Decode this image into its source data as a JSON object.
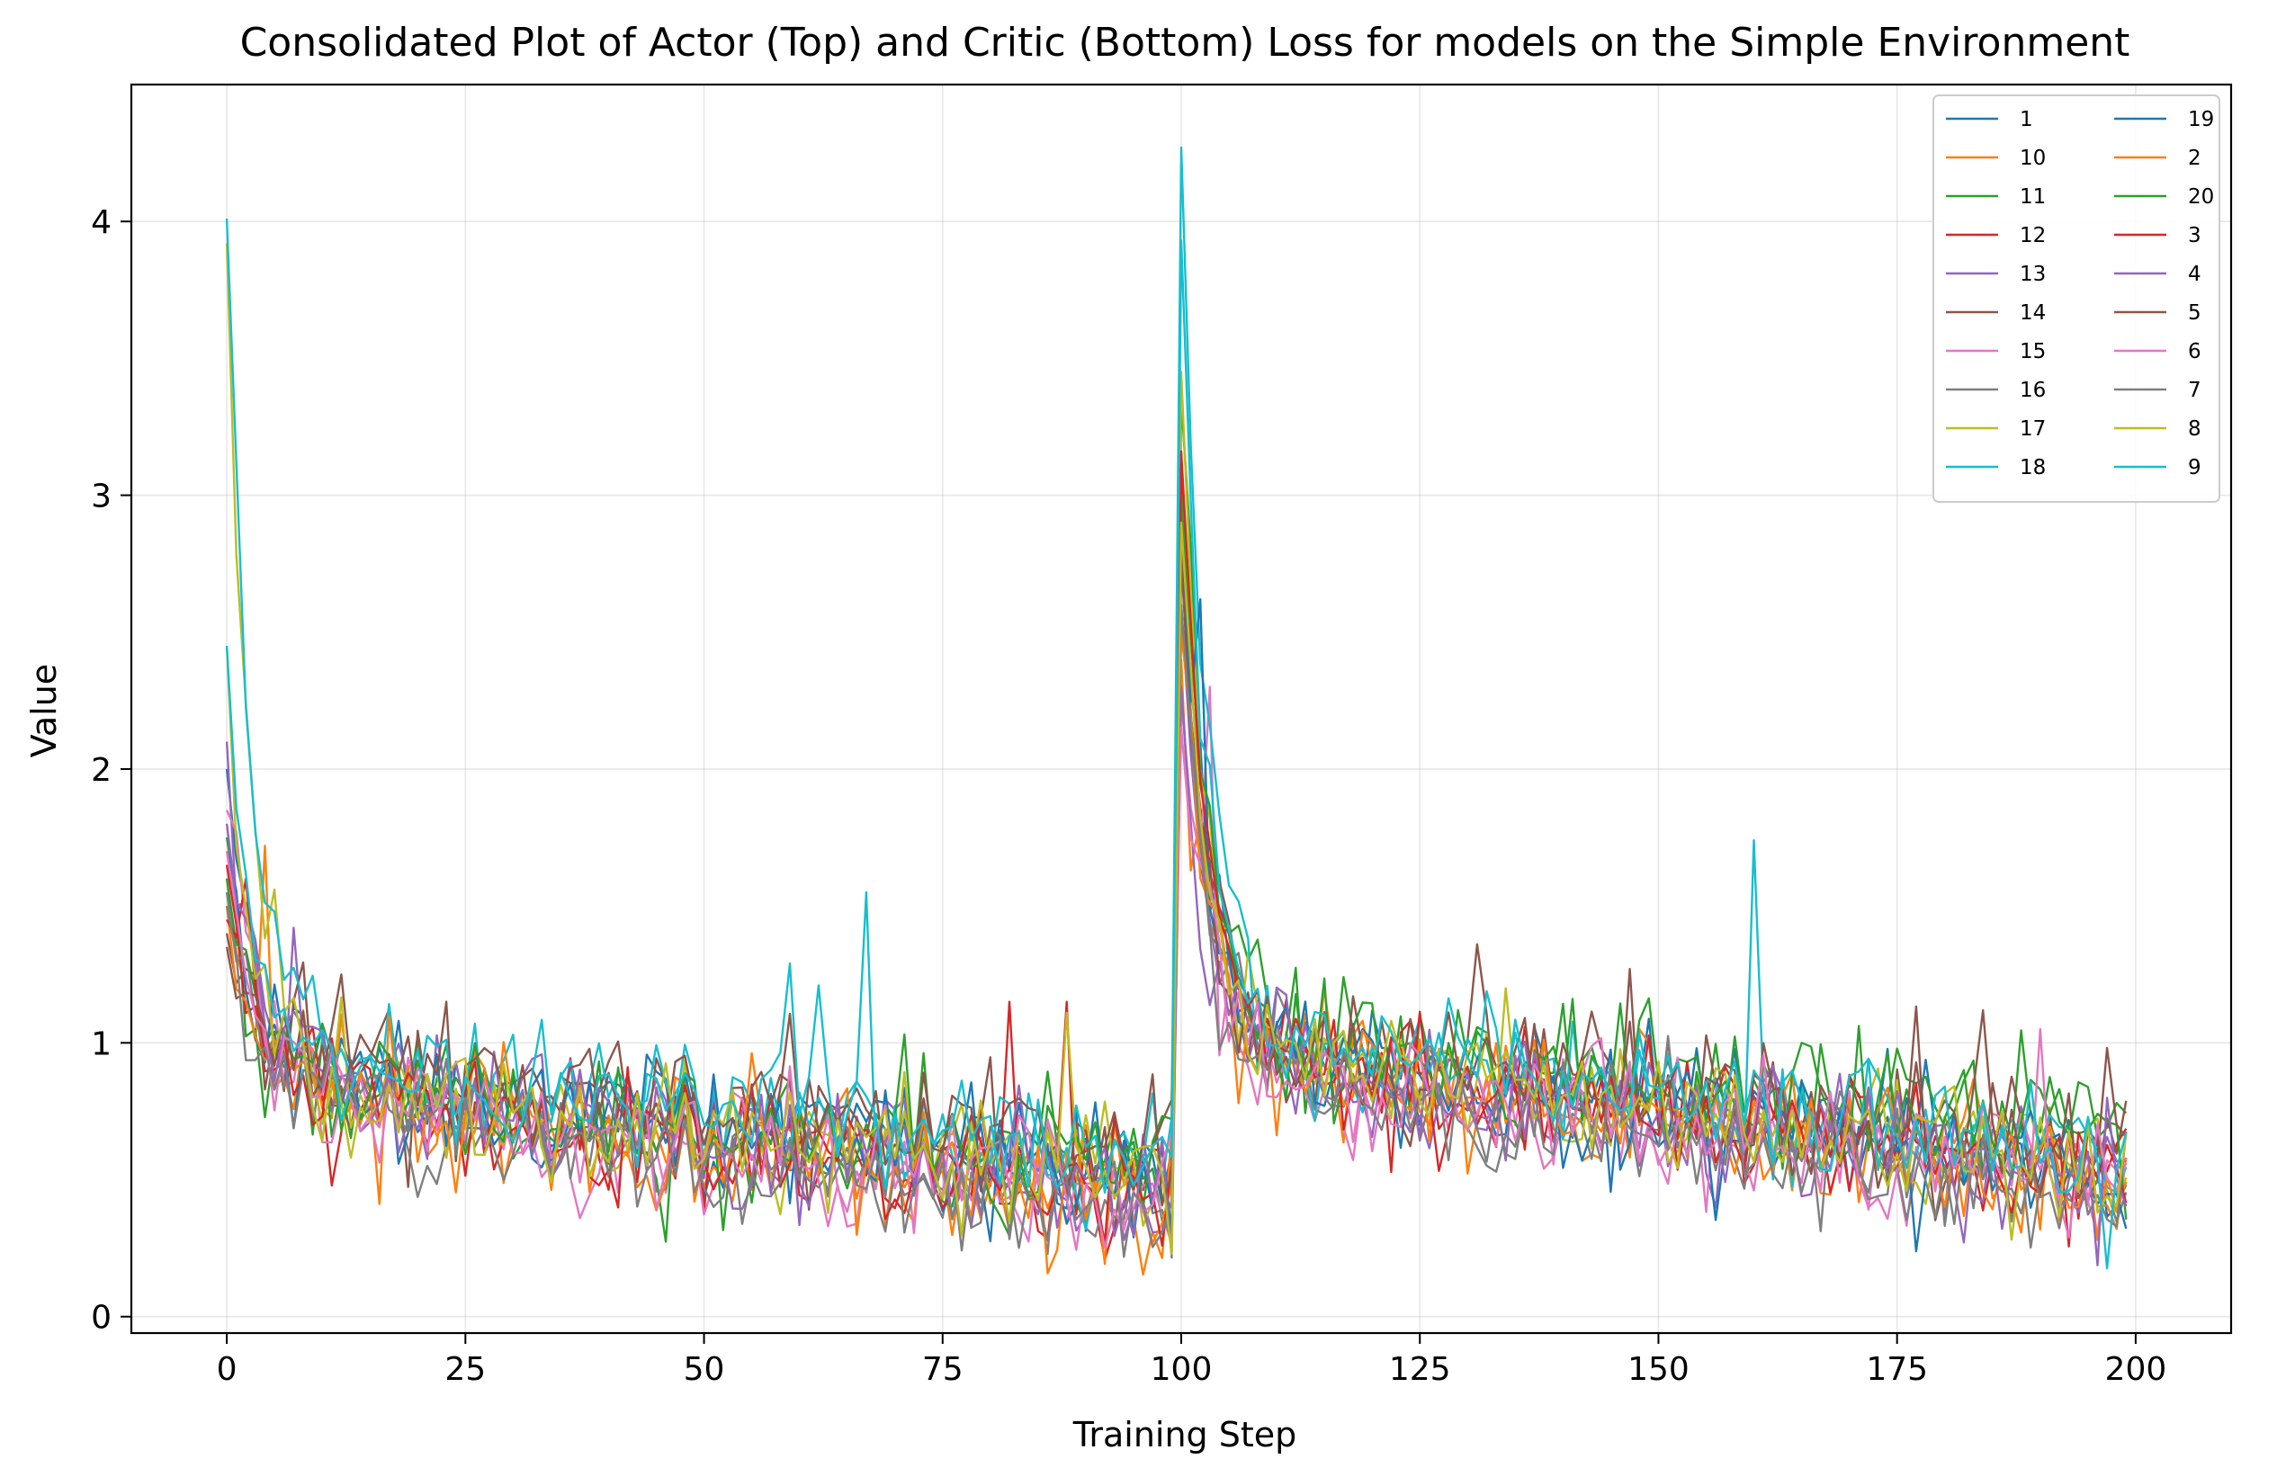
{
  "chart_data": {
    "type": "line",
    "title": "Consolidated Plot of Actor (Top) and Critic (Bottom) Loss for models on the Simple Environment",
    "xlabel": "Training Step",
    "ylabel": "Value",
    "xlim": [
      -10,
      210
    ],
    "ylim": [
      -0.06,
      4.5
    ],
    "xticks": [
      0,
      25,
      50,
      75,
      100,
      125,
      150,
      175,
      200
    ],
    "yticks": [
      0,
      1,
      2,
      3,
      4
    ],
    "grid": true,
    "legend": {
      "position": "top-right",
      "columns": 2
    },
    "x": {
      "start": 0,
      "end": 199,
      "step": 1
    },
    "series": [
      {
        "name": "1",
        "color": "#1f77b4",
        "start": 2.0,
        "plateau1": 0.88,
        "decay1": 3.2,
        "end1": 0.55,
        "spike": 3.1,
        "plateau2": 1.0,
        "decay2": 2.8,
        "end2": 0.55,
        "noise": 0.12,
        "peaks": []
      },
      {
        "name": "10",
        "color": "#ff7f0e",
        "start": 1.6,
        "plateau1": 0.86,
        "decay1": 3.0,
        "end1": 0.42,
        "spike": 2.4,
        "plateau2": 0.95,
        "decay2": 2.5,
        "end2": 0.5,
        "noise": 0.12,
        "peaks": [
          [
            4,
            1.72
          ]
        ]
      },
      {
        "name": "11",
        "color": "#2ca02c",
        "start": 1.75,
        "plateau1": 0.85,
        "decay1": 3.0,
        "end1": 0.5,
        "spike": 3.35,
        "plateau2": 1.02,
        "decay2": 2.8,
        "end2": 0.72,
        "noise": 0.12,
        "peaks": []
      },
      {
        "name": "12",
        "color": "#d62728",
        "start": 1.65,
        "plateau1": 0.87,
        "decay1": 3.0,
        "end1": 0.45,
        "spike": 3.05,
        "plateau2": 0.98,
        "decay2": 2.8,
        "end2": 0.52,
        "noise": 0.13,
        "peaks": [
          [
            82,
            1.15
          ],
          [
            88,
            1.15
          ]
        ]
      },
      {
        "name": "13",
        "color": "#9467bd",
        "start": 2.1,
        "plateau1": 0.9,
        "decay1": 3.0,
        "end1": 0.42,
        "spike": 2.6,
        "plateau2": 0.96,
        "decay2": 2.6,
        "end2": 0.48,
        "noise": 0.12,
        "peaks": [
          [
            7,
            1.42
          ]
        ]
      },
      {
        "name": "14",
        "color": "#8c564b",
        "start": 1.4,
        "plateau1": 0.95,
        "decay1": 3.0,
        "end1": 0.62,
        "spike": 2.95,
        "plateau2": 1.05,
        "decay2": 2.5,
        "end2": 0.55,
        "noise": 0.14,
        "peaks": [
          [
            131,
            1.36
          ],
          [
            147,
            1.27
          ]
        ]
      },
      {
        "name": "15",
        "color": "#e377c2",
        "start": 1.85,
        "plateau1": 0.82,
        "decay1": 3.0,
        "end1": 0.4,
        "spike": 2.25,
        "plateau2": 0.92,
        "decay2": 2.6,
        "end2": 0.5,
        "noise": 0.12,
        "peaks": [
          [
            103,
            2.3
          ]
        ]
      },
      {
        "name": "16",
        "color": "#7f7f7f",
        "start": 1.55,
        "plateau1": 0.8,
        "decay1": 3.0,
        "end1": 0.4,
        "spike": 2.75,
        "plateau2": 0.93,
        "decay2": 2.6,
        "end2": 0.45,
        "noise": 0.11,
        "peaks": []
      },
      {
        "name": "17",
        "color": "#bcbd22",
        "start": 3.92,
        "plateau1": 0.86,
        "decay1": 2.6,
        "end1": 0.5,
        "spike": 3.45,
        "plateau2": 0.98,
        "decay2": 2.6,
        "end2": 0.55,
        "noise": 0.12,
        "peaks": []
      },
      {
        "name": "18",
        "color": "#17becf",
        "start": 4.01,
        "plateau1": 0.92,
        "decay1": 2.6,
        "end1": 0.6,
        "spike": 4.27,
        "plateau2": 1.05,
        "decay2": 2.6,
        "end2": 0.6,
        "noise": 0.12,
        "peaks": [
          [
            67,
            1.55
          ],
          [
            160,
            1.74
          ]
        ]
      },
      {
        "name": "19",
        "color": "#1f77b4",
        "start": 1.7,
        "plateau1": 0.86,
        "decay1": 3.0,
        "end1": 0.48,
        "spike": 2.85,
        "plateau2": 1.0,
        "decay2": 2.8,
        "end2": 0.52,
        "noise": 0.12,
        "peaks": [
          [
            102,
            2.62
          ]
        ]
      },
      {
        "name": "2",
        "color": "#ff7f0e",
        "start": 1.5,
        "plateau1": 0.84,
        "decay1": 3.0,
        "end1": 0.45,
        "spike": 2.5,
        "plateau2": 0.96,
        "decay2": 2.6,
        "end2": 0.5,
        "noise": 0.12,
        "peaks": []
      },
      {
        "name": "20",
        "color": "#2ca02c",
        "start": 1.6,
        "plateau1": 0.88,
        "decay1": 3.0,
        "end1": 0.52,
        "spike": 3.0,
        "plateau2": 1.0,
        "decay2": 2.8,
        "end2": 0.65,
        "noise": 0.12,
        "peaks": []
      },
      {
        "name": "3",
        "color": "#d62728",
        "start": 1.45,
        "plateau1": 0.86,
        "decay1": 3.0,
        "end1": 0.47,
        "spike": 3.16,
        "plateau2": 0.98,
        "decay2": 2.8,
        "end2": 0.5,
        "noise": 0.12,
        "peaks": [
          [
            2,
            1.6
          ]
        ]
      },
      {
        "name": "4",
        "color": "#9467bd",
        "start": 1.8,
        "plateau1": 0.84,
        "decay1": 3.0,
        "end1": 0.44,
        "spike": 2.3,
        "plateau2": 0.95,
        "decay2": 2.6,
        "end2": 0.48,
        "noise": 0.12,
        "peaks": []
      },
      {
        "name": "5",
        "color": "#8c564b",
        "start": 1.35,
        "plateau1": 0.96,
        "decay1": 3.0,
        "end1": 0.6,
        "spike": 2.8,
        "plateau2": 1.02,
        "decay2": 2.5,
        "end2": 0.58,
        "noise": 0.13,
        "peaks": []
      },
      {
        "name": "6",
        "color": "#e377c2",
        "start": 1.7,
        "plateau1": 0.82,
        "decay1": 3.0,
        "end1": 0.42,
        "spike": 2.15,
        "plateau2": 0.92,
        "decay2": 2.6,
        "end2": 0.48,
        "noise": 0.12,
        "peaks": [
          [
            190,
            1.05
          ]
        ]
      },
      {
        "name": "7",
        "color": "#7f7f7f",
        "start": 1.5,
        "plateau1": 0.8,
        "decay1": 3.0,
        "end1": 0.38,
        "spike": 2.6,
        "plateau2": 0.92,
        "decay2": 2.6,
        "end2": 0.42,
        "noise": 0.11,
        "peaks": []
      },
      {
        "name": "8",
        "color": "#bcbd22",
        "start": 2.45,
        "plateau1": 0.86,
        "decay1": 2.8,
        "end1": 0.5,
        "spike": 2.9,
        "plateau2": 0.98,
        "decay2": 2.6,
        "end2": 0.52,
        "noise": 0.12,
        "peaks": [
          [
            88,
            1.11
          ]
        ]
      },
      {
        "name": "9",
        "color": "#17becf",
        "start": 2.45,
        "plateau1": 0.92,
        "decay1": 2.6,
        "end1": 0.6,
        "spike": 3.93,
        "plateau2": 1.04,
        "decay2": 2.6,
        "end2": 0.62,
        "noise": 0.12,
        "peaks": [
          [
            59,
            1.29
          ],
          [
            62,
            1.21
          ]
        ]
      }
    ]
  }
}
